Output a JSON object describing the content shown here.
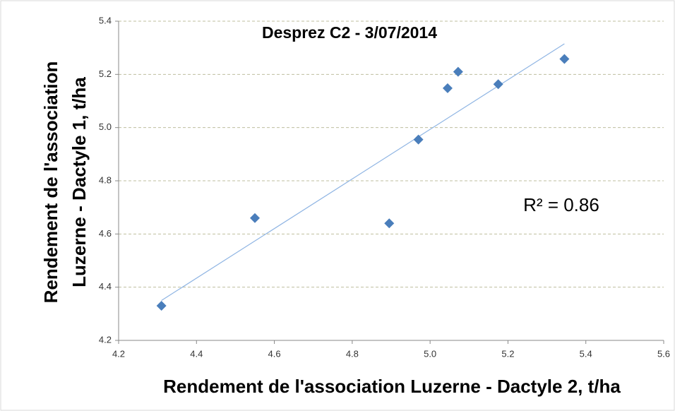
{
  "chart_data": {
    "type": "scatter",
    "title": "Desprez C2 - 3/07/2014",
    "x_label": "Rendement de l'association Luzerne -  Dactyle 2, t/ha",
    "y_label": [
      "Rendement de l'association",
      "Luzerne - Dactyle 1, t/ha"
    ],
    "annotation": "R² = 0.86",
    "x": [
      4.31,
      4.55,
      4.895,
      4.97,
      5.045,
      5.072,
      5.175,
      5.345
    ],
    "y": [
      4.33,
      4.66,
      4.64,
      4.955,
      5.148,
      5.21,
      5.163,
      5.258
    ],
    "color": "#4a7ebb",
    "trendline": {
      "x": [
        4.31,
        5.345
      ],
      "y": [
        4.35,
        5.315
      ],
      "color": "#8eb4e3"
    },
    "xlim": [
      4.2,
      5.6
    ],
    "xticks": [
      4.2,
      4.4,
      4.6,
      4.8,
      {
        "value": 5,
        "label": "5.0"
      },
      5.2,
      5.4,
      5.6
    ],
    "ylim": [
      4.2,
      5.4
    ],
    "yticks": [
      4.2,
      4.4,
      4.6,
      4.8,
      {
        "value": 5,
        "label": "5.0"
      },
      5.2,
      5.4
    ],
    "grid": true
  }
}
